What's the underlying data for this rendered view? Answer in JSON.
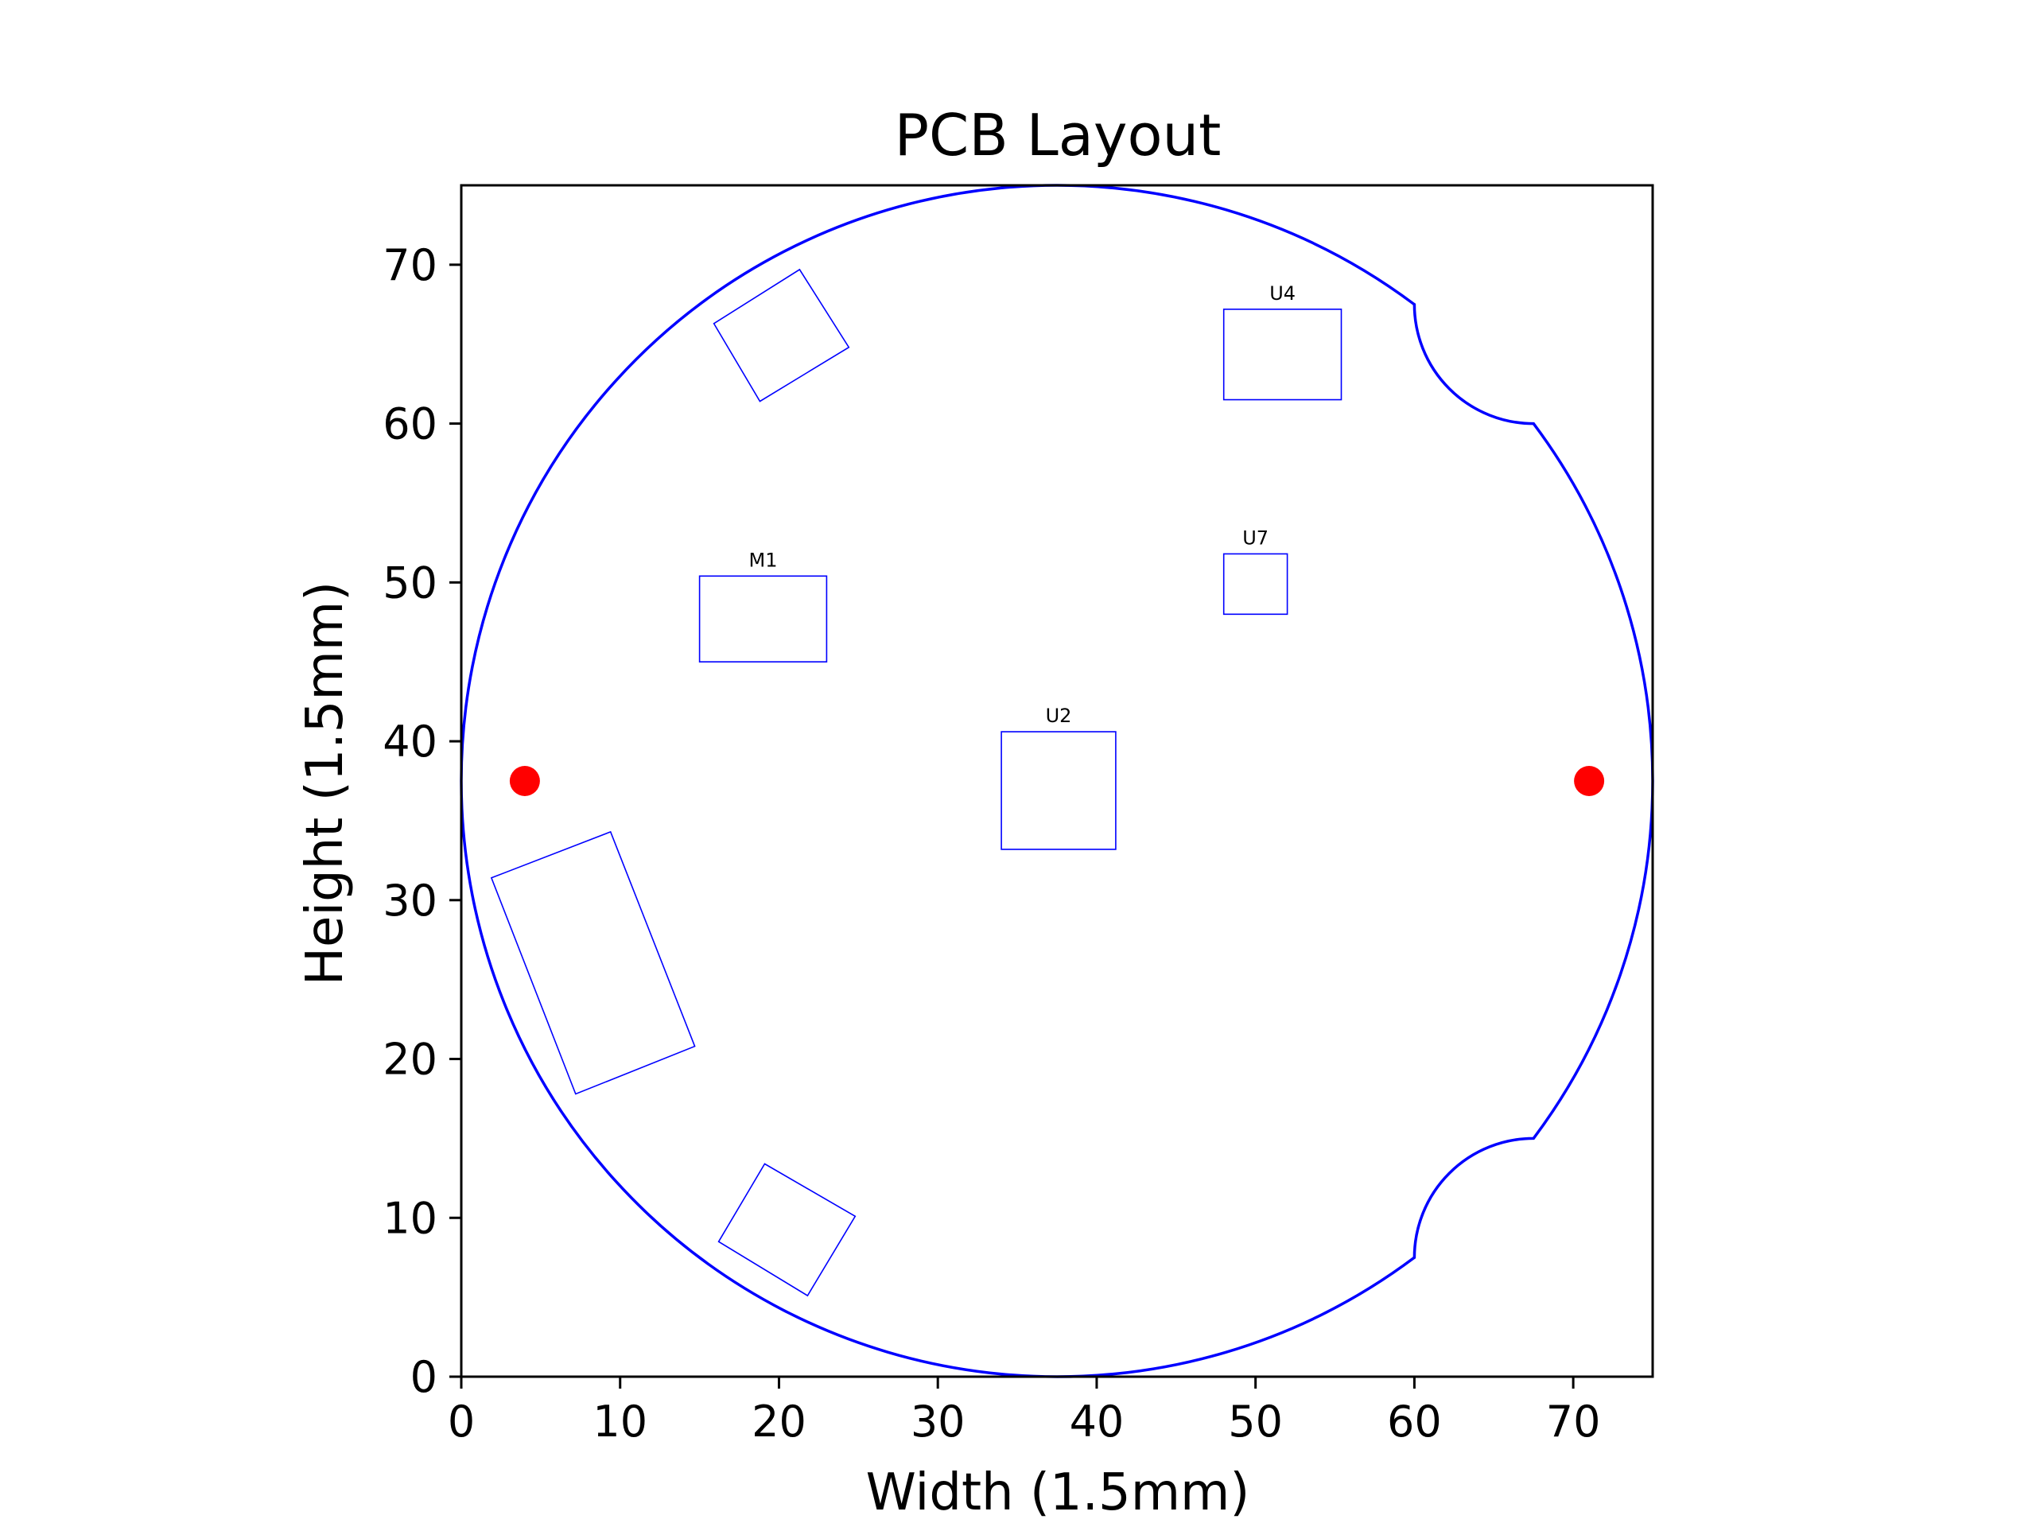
{
  "chart_data": {
    "type": "scatter",
    "title": "PCB Layout",
    "xlabel": "Width (1.5mm)",
    "ylabel": "Height (1.5mm)",
    "xlim": [
      0,
      75
    ],
    "ylim": [
      0,
      75
    ],
    "xticks": [
      0,
      10,
      20,
      30,
      40,
      50,
      60,
      70
    ],
    "yticks": [
      0,
      10,
      20,
      30,
      40,
      50,
      60,
      70
    ],
    "grid": false,
    "outline": {
      "description": "circular board outline with two notches on the right edge",
      "center": [
        37.5,
        37.5
      ],
      "radius": 37.5,
      "notches": [
        {
          "arc_start": [
            60,
            67.5
          ],
          "arc_end": [
            67.5,
            60
          ]
        },
        {
          "arc_start": [
            67.5,
            15
          ],
          "arc_end": [
            60,
            7.5
          ]
        }
      ],
      "color": "#0000ff"
    },
    "components": [
      {
        "label": "U4",
        "corners": [
          [
            48,
            61.5
          ],
          [
            55.4,
            61.5
          ],
          [
            55.4,
            67.2
          ],
          [
            48,
            67.2
          ]
        ]
      },
      {
        "label": "U7",
        "corners": [
          [
            48,
            48
          ],
          [
            52,
            48
          ],
          [
            52,
            51.8
          ],
          [
            48,
            51.8
          ]
        ]
      },
      {
        "label": "M1",
        "corners": [
          [
            15,
            45
          ],
          [
            23,
            45
          ],
          [
            23,
            50.4
          ],
          [
            15,
            50.4
          ]
        ]
      },
      {
        "label": "U2",
        "corners": [
          [
            34,
            33.2
          ],
          [
            41.2,
            33.2
          ],
          [
            41.2,
            40.6
          ],
          [
            34,
            40.6
          ]
        ]
      },
      {
        "label": "",
        "corners": [
          [
            15.9,
            66.3
          ],
          [
            21.3,
            69.7
          ],
          [
            24.4,
            64.8
          ],
          [
            18.8,
            61.4
          ]
        ]
      },
      {
        "label": "",
        "corners": [
          [
            1.9,
            31.4
          ],
          [
            9.4,
            34.3
          ],
          [
            14.7,
            20.8
          ],
          [
            7.2,
            17.8
          ]
        ]
      },
      {
        "label": "",
        "corners": [
          [
            16.2,
            8.5
          ],
          [
            19.1,
            13.4
          ],
          [
            24.8,
            10.1
          ],
          [
            21.8,
            5.1
          ]
        ]
      }
    ],
    "points": [
      {
        "x": 4,
        "y": 37.5
      },
      {
        "x": 71,
        "y": 37.5
      }
    ],
    "colors": {
      "outline": "#0000ff",
      "components": "#0000ff",
      "points": "#ff0000"
    }
  }
}
